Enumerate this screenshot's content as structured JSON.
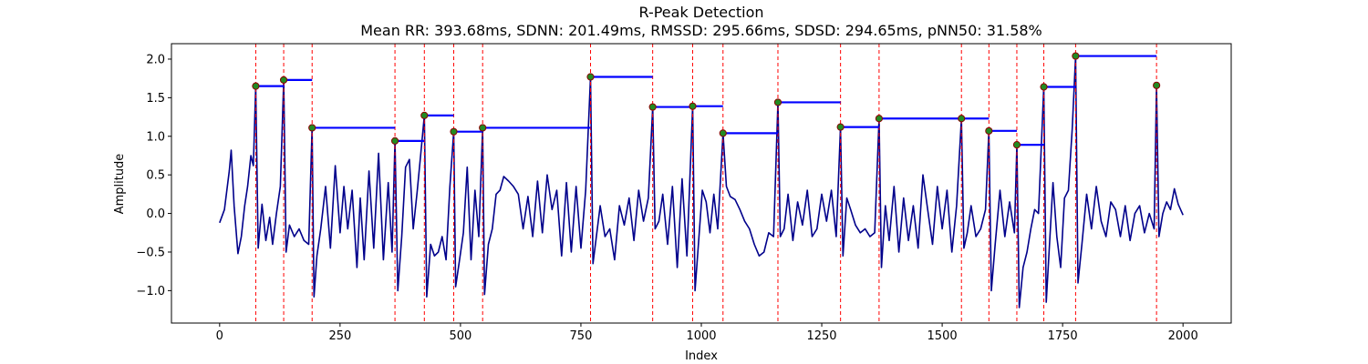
{
  "chart_data": {
    "type": "line",
    "title": "R-Peak Detection",
    "subtitle": "Mean RR: 393.68ms, SDNN: 201.49ms, RMSSD: 295.66ms, SDSD: 294.65ms, pNN50: 31.58%",
    "xlabel": "Index",
    "ylabel": "Amplitude",
    "xlim": [
      -100,
      2100
    ],
    "ylim": [
      -1.42,
      2.2
    ],
    "xticks": [
      0,
      250,
      500,
      750,
      1000,
      1250,
      1500,
      1750,
      2000
    ],
    "yticks": [
      -1.0,
      -0.5,
      0.0,
      0.5,
      1.0,
      1.5,
      2.0
    ],
    "grid": false,
    "colors": {
      "signal": "#00008b",
      "peak_marker": "#228b22",
      "peak_marker_edge": "#8b0000",
      "peak_vline": "#ff0000",
      "rr_segment": "#0000ff"
    },
    "peaks": [
      {
        "x": 75,
        "y": 1.65
      },
      {
        "x": 133,
        "y": 1.73
      },
      {
        "x": 192,
        "y": 1.11
      },
      {
        "x": 364,
        "y": 0.94
      },
      {
        "x": 425,
        "y": 1.27
      },
      {
        "x": 486,
        "y": 1.06
      },
      {
        "x": 546,
        "y": 1.11
      },
      {
        "x": 770,
        "y": 1.77
      },
      {
        "x": 899,
        "y": 1.38
      },
      {
        "x": 982,
        "y": 1.39
      },
      {
        "x": 1045,
        "y": 1.04
      },
      {
        "x": 1159,
        "y": 1.44
      },
      {
        "x": 1289,
        "y": 1.12
      },
      {
        "x": 1369,
        "y": 1.23
      },
      {
        "x": 1540,
        "y": 1.23
      },
      {
        "x": 1597,
        "y": 1.07
      },
      {
        "x": 1655,
        "y": 0.89
      },
      {
        "x": 1711,
        "y": 1.64
      },
      {
        "x": 1777,
        "y": 2.04
      },
      {
        "x": 1945,
        "y": 1.66
      }
    ],
    "series": [
      {
        "x": [
          0,
          10,
          20,
          24,
          30,
          38,
          45,
          52,
          58,
          65,
          70,
          75,
          80,
          88,
          96,
          104,
          110,
          118,
          126,
          133,
          138,
          145,
          155,
          165,
          175,
          185,
          192,
          196,
          202,
          210,
          220,
          230,
          240,
          250,
          258,
          266,
          275,
          285,
          292,
          300,
          310,
          320,
          330,
          340,
          350,
          358,
          364,
          370,
          378,
          386,
          394,
          402,
          410,
          418,
          425,
          430,
          438,
          446,
          454,
          462,
          470,
          478,
          486,
          490,
          498,
          506,
          514,
          522,
          530,
          538,
          546,
          550,
          558,
          566,
          574,
          582,
          590,
          600,
          610,
          620,
          630,
          640,
          650,
          660,
          670,
          680,
          690,
          700,
          710,
          720,
          730,
          740,
          750,
          760,
          770,
          775,
          782,
          790,
          800,
          810,
          820,
          830,
          840,
          850,
          860,
          870,
          880,
          890,
          899,
          904,
          912,
          920,
          930,
          940,
          950,
          960,
          970,
          982,
          987,
          994,
          1002,
          1010,
          1018,
          1026,
          1034,
          1045,
          1052,
          1060,
          1070,
          1080,
          1090,
          1100,
          1110,
          1120,
          1130,
          1140,
          1150,
          1159,
          1164,
          1172,
          1180,
          1190,
          1200,
          1210,
          1220,
          1230,
          1240,
          1250,
          1260,
          1270,
          1280,
          1289,
          1294,
          1302,
          1310,
          1320,
          1330,
          1340,
          1350,
          1360,
          1369,
          1374,
          1382,
          1390,
          1400,
          1410,
          1420,
          1430,
          1440,
          1450,
          1460,
          1470,
          1480,
          1490,
          1500,
          1510,
          1520,
          1530,
          1540,
          1545,
          1552,
          1560,
          1570,
          1580,
          1590,
          1597,
          1602,
          1610,
          1620,
          1630,
          1640,
          1650,
          1655,
          1660,
          1668,
          1676,
          1684,
          1692,
          1700,
          1711,
          1716,
          1722,
          1730,
          1738,
          1746,
          1754,
          1762,
          1770,
          1777,
          1782,
          1790,
          1800,
          1810,
          1820,
          1830,
          1840,
          1850,
          1860,
          1870,
          1880,
          1890,
          1900,
          1910,
          1920,
          1930,
          1940,
          1945,
          1950,
          1958,
          1966,
          1974,
          1982,
          1990,
          2000
        ],
        "y": [
          -0.12,
          0.05,
          0.55,
          0.82,
          0.1,
          -0.52,
          -0.3,
          0.1,
          0.35,
          0.75,
          0.62,
          1.65,
          -0.45,
          0.12,
          -0.35,
          -0.05,
          -0.4,
          0.0,
          0.35,
          1.73,
          -0.5,
          -0.15,
          -0.3,
          -0.2,
          -0.35,
          -0.4,
          1.11,
          -1.08,
          -0.55,
          -0.2,
          0.35,
          -0.45,
          0.62,
          -0.25,
          0.35,
          -0.2,
          0.3,
          -0.7,
          0.2,
          -0.6,
          0.55,
          -0.45,
          0.78,
          -0.6,
          0.4,
          -0.5,
          0.94,
          -1.0,
          -0.3,
          0.6,
          0.7,
          -0.2,
          0.28,
          0.8,
          1.27,
          -1.08,
          -0.4,
          -0.55,
          -0.5,
          -0.3,
          -0.6,
          0.35,
          1.06,
          -0.95,
          -0.6,
          -0.25,
          0.6,
          -0.6,
          0.3,
          -0.3,
          1.11,
          -1.05,
          -0.4,
          -0.2,
          0.25,
          0.3,
          0.48,
          0.42,
          0.35,
          0.25,
          -0.2,
          0.22,
          -0.3,
          0.42,
          -0.25,
          0.5,
          0.05,
          0.3,
          -0.55,
          0.4,
          -0.5,
          0.35,
          -0.45,
          0.3,
          1.77,
          -0.65,
          -0.3,
          0.1,
          -0.3,
          -0.2,
          -0.6,
          0.1,
          -0.15,
          0.2,
          -0.35,
          0.3,
          -0.1,
          0.2,
          1.38,
          -0.2,
          -0.1,
          0.25,
          -0.4,
          0.35,
          -0.7,
          0.45,
          -0.55,
          1.39,
          -1.0,
          -0.4,
          0.3,
          0.15,
          -0.25,
          0.25,
          -0.2,
          1.04,
          0.35,
          0.22,
          0.18,
          0.05,
          -0.1,
          -0.2,
          -0.4,
          -0.55,
          -0.5,
          -0.25,
          -0.3,
          1.44,
          -0.3,
          -0.2,
          0.25,
          -0.35,
          0.15,
          -0.15,
          0.3,
          -0.3,
          -0.2,
          0.25,
          -0.1,
          0.3,
          -0.3,
          1.12,
          -0.55,
          0.2,
          0.05,
          -0.15,
          -0.25,
          -0.2,
          -0.3,
          -0.25,
          1.23,
          -0.7,
          0.1,
          -0.35,
          0.35,
          -0.5,
          0.2,
          -0.35,
          0.1,
          -0.45,
          0.5,
          0.05,
          -0.4,
          0.35,
          -0.2,
          0.3,
          -0.5,
          0.1,
          1.23,
          -0.45,
          -0.25,
          0.1,
          -0.3,
          -0.2,
          0.05,
          1.07,
          -1.0,
          -0.4,
          0.3,
          -0.3,
          0.15,
          -0.25,
          0.89,
          -1.22,
          -0.7,
          -0.5,
          -0.2,
          0.05,
          0.0,
          1.64,
          -1.15,
          -0.5,
          0.4,
          -0.3,
          -0.7,
          0.2,
          0.3,
          1.1,
          2.04,
          -0.9,
          -0.4,
          0.25,
          -0.2,
          0.35,
          -0.1,
          -0.3,
          0.15,
          0.05,
          -0.3,
          0.1,
          -0.35,
          0.0,
          0.1,
          -0.25,
          0.0,
          -0.2,
          1.66,
          -0.3,
          0.0,
          0.15,
          0.05,
          0.32,
          0.12,
          -0.02
        ]
      }
    ]
  }
}
